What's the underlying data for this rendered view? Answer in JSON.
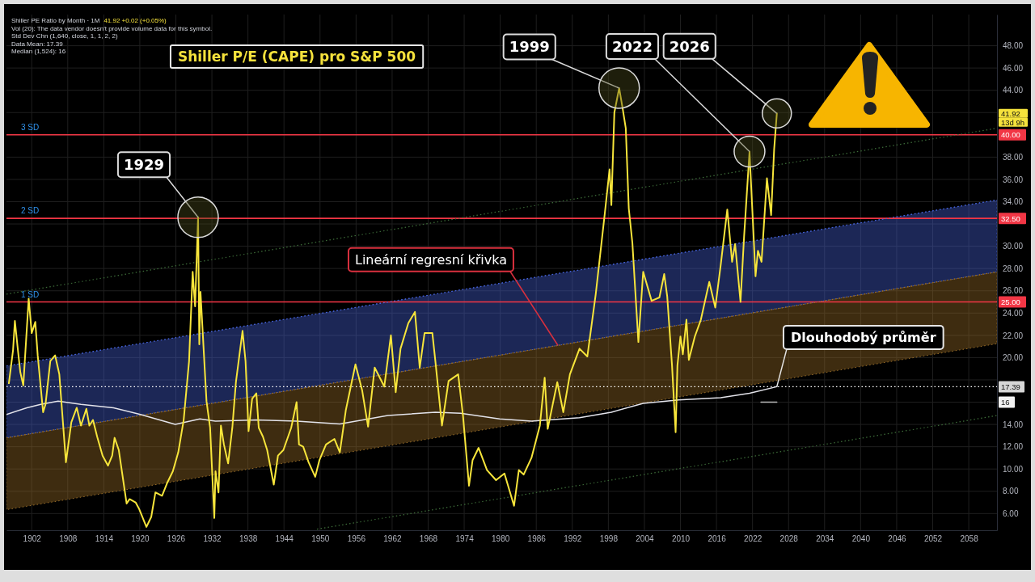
{
  "chart_data": {
    "type": "line",
    "title": "Shiller P/E (CAPE) pro S&P 500",
    "xlim": [
      1897.8,
      2062.7
    ],
    "xticks": [
      1902,
      1908,
      1914,
      1920,
      1926,
      1932,
      1938,
      1944,
      1950,
      1956,
      1962,
      1968,
      1974,
      1980,
      1986,
      1992,
      1998,
      2004,
      2010,
      2016,
      2022,
      2028,
      2034,
      2040,
      2046,
      2052,
      2058
    ],
    "ylim": [
      4.5,
      50.8
    ],
    "yticks": [
      {
        "value": 6,
        "label": "6.00"
      },
      {
        "value": 8,
        "label": "8.00"
      },
      {
        "value": 10,
        "label": "10.00"
      },
      {
        "value": 12,
        "label": "12.00"
      },
      {
        "value": 14,
        "label": "14.00"
      },
      {
        "value": 16,
        "label": null
      },
      {
        "value": 18,
        "label": null
      },
      {
        "value": 20,
        "label": "20.00"
      },
      {
        "value": 22,
        "label": "22.00"
      },
      {
        "value": 24,
        "label": "24.00"
      },
      {
        "value": 26,
        "label": "26.00"
      },
      {
        "value": 28,
        "label": "28.00"
      },
      {
        "value": 30,
        "label": "30.00"
      },
      {
        "value": 32,
        "label": null
      },
      {
        "value": 34,
        "label": "34.00"
      },
      {
        "value": 36,
        "label": "36.00"
      },
      {
        "value": 38,
        "label": "38.00"
      },
      {
        "value": 40,
        "label": null
      },
      {
        "value": 42,
        "label": null
      },
      {
        "value": 44,
        "label": "44.00"
      },
      {
        "value": 46,
        "label": "46.00"
      },
      {
        "value": 48,
        "label": "48.00"
      }
    ],
    "grid": true,
    "series": [
      {
        "type": "line",
        "color": "#4562d6",
        "line_style": "dotted",
        "x": [
          1897.8,
          2062.7
        ],
        "values": [
          19.25,
          34.15
        ],
        "lower": [
          12.8,
          27.7
        ],
        "upper": [
          19.25,
          34.15
        ]
      },
      {
        "type": "line",
        "color": "#9a6e28",
        "line_style": "dotted",
        "x": [
          1897.8,
          2062.7
        ],
        "values": [
          12.8,
          27.7
        ],
        "lower": [
          6.35,
          21.25
        ],
        "upper": [
          12.8,
          27.7
        ]
      },
      {
        "type": "line",
        "color": "#3e6e3a",
        "line_style": "dotted",
        "x": [
          1897.8,
          2062.7
        ],
        "values": [
          25.7,
          40.6
        ]
      },
      {
        "type": "line",
        "color": "#3e6e3a",
        "line_style": "dotted",
        "x": [
          1949.5,
          2062.7
        ],
        "values": [
          4.6,
          14.8
        ]
      },
      {
        "type": "line",
        "color": "#e3e3ea",
        "x": [
          1897.8,
          1901.2,
          1903.5,
          1906.4,
          1910.2,
          1915.6,
          1920.1,
          1925.9,
          1930.0,
          1932.6,
          1939.4,
          1946.1,
          1953.3,
          1961.3,
          1969.2,
          1973.4,
          1979.9,
          1985.2,
          1993.2,
          1998.5,
          2003.8,
          2009.7,
          2016.7,
          2021.5,
          2026.05
        ],
        "values": [
          14.9,
          15.5,
          15.8,
          16.1,
          15.8,
          15.5,
          14.9,
          14.0,
          14.5,
          14.3,
          14.4,
          14.3,
          14.05,
          14.8,
          15.1,
          15.0,
          14.5,
          14.3,
          14.6,
          15.1,
          15.9,
          16.2,
          16.4,
          16.8,
          17.39
        ]
      },
      {
        "type": "line",
        "color": "#bdbdbd",
        "x": [
          2023.4,
          2026.05
        ],
        "values": [
          16,
          16
        ]
      },
      {
        "type": "line",
        "color": "#f7e53b",
        "x": [
          1898.2,
          1898.9,
          1899.2,
          1899.7,
          1900.1,
          1900.6,
          1901.5,
          1902.0,
          1902.6,
          1903.0,
          1903.9,
          1904.3,
          1905.1,
          1905.9,
          1906.6,
          1907.7,
          1908.6,
          1909.5,
          1910.2,
          1911.1,
          1911.6,
          1912.2,
          1912.9,
          1913.8,
          1914.7,
          1915.4,
          1915.8,
          1916.5,
          1917.8,
          1918.3,
          1919.3,
          1919.9,
          1921.1,
          1921.9,
          1922.6,
          1923.7,
          1924.6,
          1925.5,
          1926.4,
          1927.3,
          1928.2,
          1928.8,
          1929.2,
          1929.7,
          1929.9,
          1930.1,
          1931.1,
          1931.7,
          1932.4,
          1932.6,
          1933.1,
          1933.5,
          1934.0,
          1934.7,
          1935.4,
          1936.0,
          1937.1,
          1937.6,
          1938.1,
          1938.7,
          1939.4,
          1939.8,
          1940.5,
          1941.2,
          1942.3,
          1943.0,
          1943.9,
          1945.2,
          1946.1,
          1946.5,
          1947.2,
          1948.1,
          1949.2,
          1949.9,
          1951.0,
          1952.4,
          1953.3,
          1954.3,
          1955.9,
          1957.0,
          1958.0,
          1959.1,
          1960.7,
          1961.8,
          1962.6,
          1963.4,
          1964.7,
          1965.8,
          1966.6,
          1967.4,
          1968.7,
          1969.2,
          1970.3,
          1971.4,
          1973.0,
          1973.8,
          1974.8,
          1975.4,
          1976.4,
          1977.8,
          1979.3,
          1980.7,
          1982.3,
          1983.1,
          1983.9,
          1985.2,
          1986.6,
          1987.4,
          1987.9,
          1989.5,
          1990.5,
          1991.6,
          1993.2,
          1994.5,
          1995.9,
          1997.4,
          1998.2,
          1998.5,
          1999.0,
          1999.8,
          2000.4,
          2000.9,
          2001.4,
          2002.0,
          2003.0,
          2003.8,
          2005.2,
          2006.5,
          2007.3,
          2007.8,
          2008.6,
          2009.2,
          2009.5,
          2010.0,
          2010.4,
          2011.0,
          2011.4,
          2012.4,
          2013.4,
          2014.8,
          2015.8,
          2016.7,
          2017.8,
          2018.6,
          2019.1,
          2020.0,
          2020.6,
          2021.5,
          2022.5,
          2022.9,
          2023.5,
          2024.4,
          2025.1,
          2025.6,
          2026.05
        ],
        "values": [
          17.7,
          20.7,
          23.3,
          20.7,
          18.7,
          17.5,
          25.3,
          22.2,
          23.2,
          20.2,
          15.1,
          15.8,
          19.7,
          20.2,
          18.5,
          10.6,
          14.2,
          15.5,
          13.9,
          15.4,
          13.9,
          14.4,
          12.9,
          11.2,
          10.3,
          11.2,
          12.8,
          11.7,
          6.9,
          7.3,
          7.0,
          6.4,
          4.8,
          5.7,
          7.9,
          7.6,
          8.8,
          9.8,
          11.5,
          14.4,
          19.7,
          27.7,
          24.6,
          32.6,
          21.2,
          25.9,
          16.1,
          13.7,
          5.6,
          9.8,
          7.9,
          13.9,
          12.2,
          10.5,
          13.7,
          17.8,
          22.4,
          19.7,
          13.4,
          16.3,
          16.8,
          13.7,
          12.9,
          11.7,
          8.6,
          11.2,
          11.7,
          13.7,
          16.0,
          12.2,
          12.0,
          10.6,
          9.3,
          10.8,
          12.2,
          12.7,
          11.5,
          15.3,
          19.4,
          17.1,
          13.8,
          19.1,
          17.4,
          22.0,
          16.9,
          20.8,
          23.1,
          24.1,
          19.1,
          22.2,
          22.2,
          19.7,
          13.9,
          17.9,
          18.5,
          14.8,
          8.5,
          10.8,
          11.9,
          9.9,
          9.0,
          9.6,
          6.7,
          9.9,
          9.5,
          11.0,
          13.9,
          18.2,
          13.6,
          17.8,
          15.1,
          18.5,
          20.8,
          20.1,
          25.7,
          32.9,
          36.9,
          33.7,
          42.0,
          44.2,
          42.3,
          40.6,
          33.4,
          30.3,
          21.4,
          27.7,
          25.1,
          25.4,
          27.5,
          25.5,
          19.3,
          13.3,
          19.3,
          21.9,
          20.3,
          23.4,
          19.8,
          21.9,
          23.4,
          26.8,
          24.5,
          28.3,
          33.3,
          28.6,
          30.2,
          25.0,
          30.9,
          38.5,
          27.3,
          29.6,
          28.6,
          36.1,
          32.8,
          38.7,
          41.92
        ]
      }
    ],
    "ref_lines": [
      {
        "axis": "y",
        "value": 40,
        "label": "3 SD",
        "color": "#f23645"
      },
      {
        "axis": "y",
        "value": 32.5,
        "label": "2 SD",
        "color": "#f23645"
      },
      {
        "axis": "y",
        "value": 25,
        "label": "1 SD",
        "color": "#f23645"
      },
      {
        "axis": "y",
        "value": 17.39,
        "color": "#ffffff",
        "line_style": "dotted"
      }
    ],
    "annotations": [
      "Shiller PE Ratio by Month · 1M",
      "41.92 +0.02 (+0.05%)",
      "Vol (20): The data vendor doesn't provide volume data for this symbol.",
      "Std Dev Chn (1,640, close, 1, 1, 2, 2)",
      "Data Mean: 17.39",
      "Median (1,524): 16",
      {
        "text": "1929",
        "x": 1929.7,
        "y": 32.6
      },
      {
        "text": "1999",
        "x": 1999.8,
        "y": 44.2
      },
      {
        "text": "2022",
        "x": 2021.5,
        "y": 38.5
      },
      {
        "text": "2026",
        "x": 2026.05,
        "y": 41.92
      },
      {
        "text": "Lineární regresní křivka",
        "x": 1989.6,
        "y": 21.1
      },
      {
        "text": "Dlouhodobý průměr",
        "x": 2026.05,
        "y": 17.39
      },
      "41.92",
      "13d 9h",
      "40.00",
      "32.50",
      "25.00",
      "17.39",
      "16"
    ]
  }
}
